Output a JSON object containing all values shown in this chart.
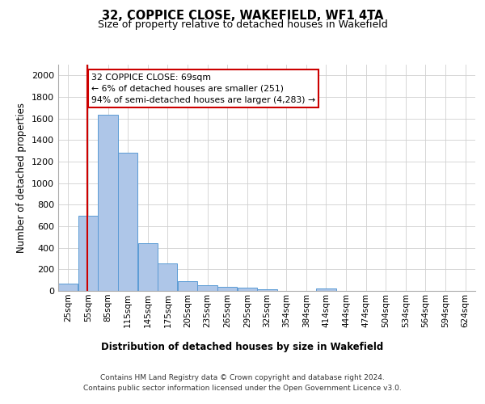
{
  "title": "32, COPPICE CLOSE, WAKEFIELD, WF1 4TA",
  "subtitle": "Size of property relative to detached houses in Wakefield",
  "xlabel": "Distribution of detached houses by size in Wakefield",
  "ylabel": "Number of detached properties",
  "bar_color": "#aec6e8",
  "bar_edge_color": "#5b9bd5",
  "background_color": "#ffffff",
  "grid_color": "#d0d0d0",
  "annotation_text": "32 COPPICE CLOSE: 69sqm\n← 6% of detached houses are smaller (251)\n94% of semi-detached houses are larger (4,283) →",
  "annotation_box_color": "#ffffff",
  "annotation_box_edge_color": "#cc0000",
  "vline_x": 69,
  "vline_color": "#cc0000",
  "categories": [
    "25sqm",
    "55sqm",
    "85sqm",
    "115sqm",
    "145sqm",
    "175sqm",
    "205sqm",
    "235sqm",
    "265sqm",
    "295sqm",
    "325sqm",
    "354sqm",
    "384sqm",
    "414sqm",
    "444sqm",
    "474sqm",
    "504sqm",
    "534sqm",
    "564sqm",
    "594sqm",
    "624sqm"
  ],
  "bin_edges": [
    25,
    55,
    85,
    115,
    145,
    175,
    205,
    235,
    265,
    295,
    325,
    354,
    384,
    414,
    444,
    474,
    504,
    534,
    564,
    594,
    624
  ],
  "values": [
    65,
    695,
    1635,
    1285,
    445,
    255,
    90,
    55,
    35,
    30,
    15,
    0,
    0,
    20,
    0,
    0,
    0,
    0,
    0,
    0,
    0
  ],
  "ylim": [
    0,
    2100
  ],
  "yticks": [
    0,
    200,
    400,
    600,
    800,
    1000,
    1200,
    1400,
    1600,
    1800,
    2000
  ],
  "footer_line1": "Contains HM Land Registry data © Crown copyright and database right 2024.",
  "footer_line2": "Contains public sector information licensed under the Open Government Licence v3.0."
}
